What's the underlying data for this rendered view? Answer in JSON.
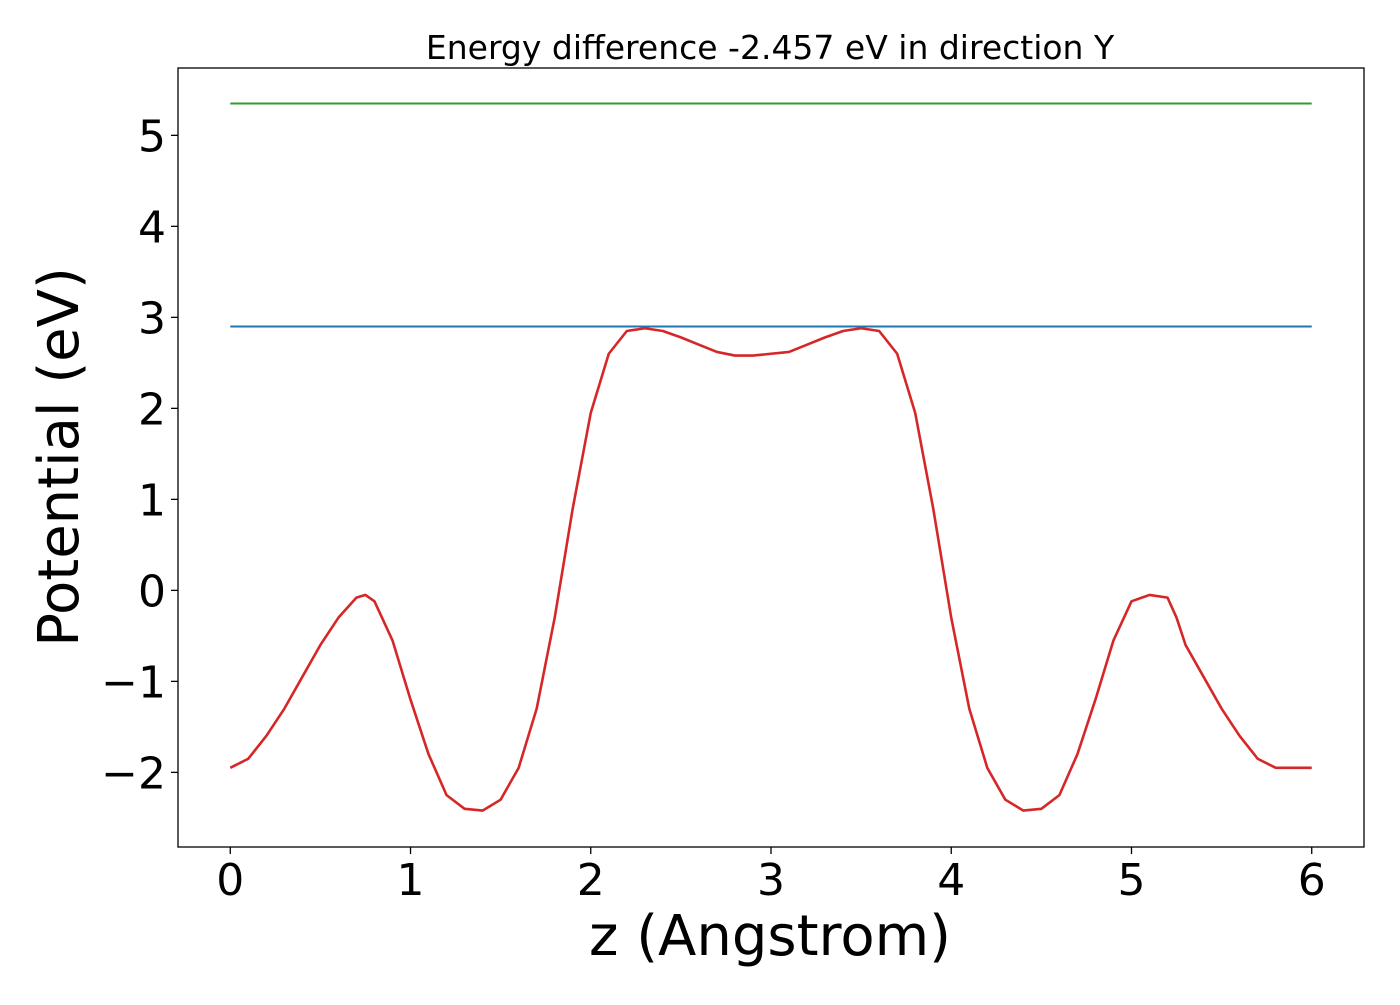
{
  "chart_data": {
    "type": "line",
    "title": "Energy difference -2.457 eV in direction Y",
    "xlabel": "z (Angstrom)",
    "ylabel": "Potential (eV)",
    "xlim": [
      -0.29,
      6.29
    ],
    "ylim": [
      -2.82,
      5.74
    ],
    "x_ticks": [
      0,
      1,
      2,
      3,
      4,
      5,
      6
    ],
    "x_tick_labels": [
      "0",
      "1",
      "2",
      "3",
      "4",
      "5",
      "6"
    ],
    "y_ticks": [
      -2,
      -1,
      0,
      1,
      2,
      3,
      4,
      5
    ],
    "y_tick_labels": [
      "−2",
      "−1",
      "0",
      "1",
      "2",
      "3",
      "4",
      "5"
    ],
    "grid": false,
    "series": [
      {
        "color": "#2ca02c",
        "x": [
          0,
          6
        ],
        "y": [
          5.35,
          5.35
        ]
      },
      {
        "color": "#1f77b4",
        "x": [
          0,
          6
        ],
        "y": [
          2.9,
          2.9
        ]
      },
      {
        "color": "#d62728",
        "x": [
          0,
          0.1,
          0.2,
          0.3,
          0.4,
          0.5,
          0.6,
          0.7,
          0.75,
          0.8,
          0.9,
          1.0,
          1.1,
          1.2,
          1.3,
          1.4,
          1.5,
          1.6,
          1.7,
          1.8,
          1.9,
          2.0,
          2.1,
          2.2,
          2.3,
          2.4,
          2.5,
          2.6,
          2.7,
          2.8,
          2.9,
          3.0,
          3.1,
          3.2,
          3.3,
          3.4,
          3.5,
          3.6,
          3.7,
          3.8,
          3.9,
          4.0,
          4.1,
          4.2,
          4.3,
          4.4,
          4.5,
          4.6,
          4.7,
          4.8,
          4.9,
          5.0,
          5.1,
          5.2,
          5.25,
          5.3,
          5.4,
          5.5,
          5.6,
          5.7,
          5.8,
          5.9,
          6.0
        ],
        "y": [
          -1.95,
          -1.85,
          -1.6,
          -1.3,
          -0.95,
          -0.6,
          -0.3,
          -0.08,
          -0.05,
          -0.12,
          -0.55,
          -1.2,
          -1.8,
          -2.25,
          -2.4,
          -2.42,
          -2.3,
          -1.95,
          -1.3,
          -0.3,
          0.9,
          1.95,
          2.6,
          2.85,
          2.88,
          2.85,
          2.78,
          2.7,
          2.62,
          2.58,
          2.58,
          2.6,
          2.62,
          2.7,
          2.78,
          2.85,
          2.88,
          2.85,
          2.6,
          1.95,
          0.9,
          -0.3,
          -1.3,
          -1.95,
          -2.3,
          -2.42,
          -2.4,
          -2.25,
          -1.8,
          -1.2,
          -0.55,
          -0.12,
          -0.05,
          -0.08,
          -0.3,
          -0.6,
          -0.95,
          -1.3,
          -1.6,
          -1.85,
          -1.95,
          -1.95,
          -1.95
        ]
      }
    ]
  }
}
